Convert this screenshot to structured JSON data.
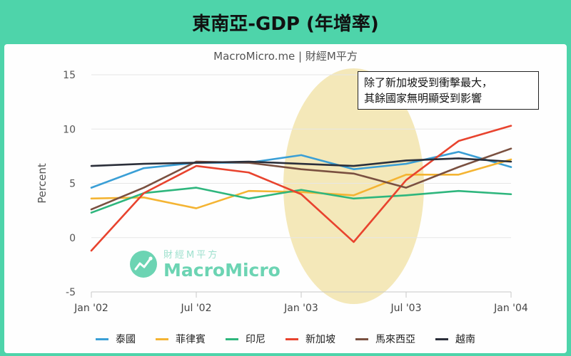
{
  "header": {
    "title": "東南亞-GDP (年增率)"
  },
  "colors": {
    "background": "#4ed4aa",
    "highlight": "#f2e4ad",
    "grid": "#e6e6e6",
    "axis": "#c8c8c8"
  },
  "chart_data": {
    "type": "line",
    "title": "東南亞-GDP (年增率)",
    "subtitle": "MacroMicro.me | 財經M平方",
    "ylabel": "Percent",
    "xlabel": "",
    "ylim": [
      -5,
      15
    ],
    "yticks": [
      15,
      10,
      5,
      0,
      -5
    ],
    "x": [
      0,
      1,
      2,
      3,
      4,
      5,
      6,
      7,
      8,
      9,
      10,
      11,
      12,
      13,
      14,
      15,
      16,
      17,
      18,
      19,
      20,
      21,
      22,
      23,
      24
    ],
    "xtick_positions": [
      0,
      6,
      12,
      18,
      24
    ],
    "xtick_labels": [
      "Jan '02",
      "Jul '02",
      "Jan '03",
      "Jul '03",
      "Jan '04"
    ],
    "highlight_region": [
      12,
      18
    ],
    "series": [
      {
        "name": "泰國",
        "color": "#3a9fd6",
        "x": [
          0,
          3,
          6,
          9,
          12,
          15,
          18,
          21,
          24
        ],
        "values": [
          4.6,
          6.4,
          6.9,
          6.9,
          7.6,
          6.3,
          6.8,
          7.9,
          6.5
        ]
      },
      {
        "name": "菲律賓",
        "color": "#f4b433",
        "x": [
          0,
          3,
          6,
          9,
          12,
          15,
          18,
          21,
          24
        ],
        "values": [
          3.6,
          3.7,
          2.7,
          4.3,
          4.2,
          3.9,
          5.8,
          5.8,
          7.2
        ]
      },
      {
        "name": "印尼",
        "color": "#2eb67d",
        "x": [
          0,
          3,
          6,
          9,
          12,
          15,
          18,
          21,
          24
        ],
        "values": [
          2.3,
          4.1,
          4.6,
          3.6,
          4.4,
          3.6,
          3.9,
          4.3,
          4.0
        ]
      },
      {
        "name": "新加坡",
        "color": "#e8432e",
        "x": [
          0,
          3,
          6,
          9,
          12,
          15,
          18,
          21,
          24
        ],
        "values": [
          -1.2,
          4.1,
          6.6,
          6.0,
          4.0,
          -0.4,
          5.3,
          8.9,
          10.3
        ]
      },
      {
        "name": "馬來西亞",
        "color": "#7a5040",
        "x": [
          0,
          3,
          6,
          9,
          12,
          15,
          18,
          21,
          24
        ],
        "values": [
          2.6,
          4.6,
          7.0,
          6.9,
          6.3,
          5.9,
          4.6,
          6.5,
          8.2
        ]
      },
      {
        "name": "越南",
        "color": "#2b2f3a",
        "x": [
          0,
          3,
          6,
          9,
          12,
          15,
          18,
          21,
          24
        ],
        "values": [
          6.6,
          6.8,
          6.9,
          7.0,
          6.8,
          6.6,
          7.1,
          7.3,
          7.0
        ]
      }
    ],
    "annotation": [
      "除了新加坡受到衝擊最大，",
      "其餘國家無明顯受到影響"
    ],
    "watermark": {
      "cn": "財經M平方",
      "en": "MacroMicro"
    }
  }
}
